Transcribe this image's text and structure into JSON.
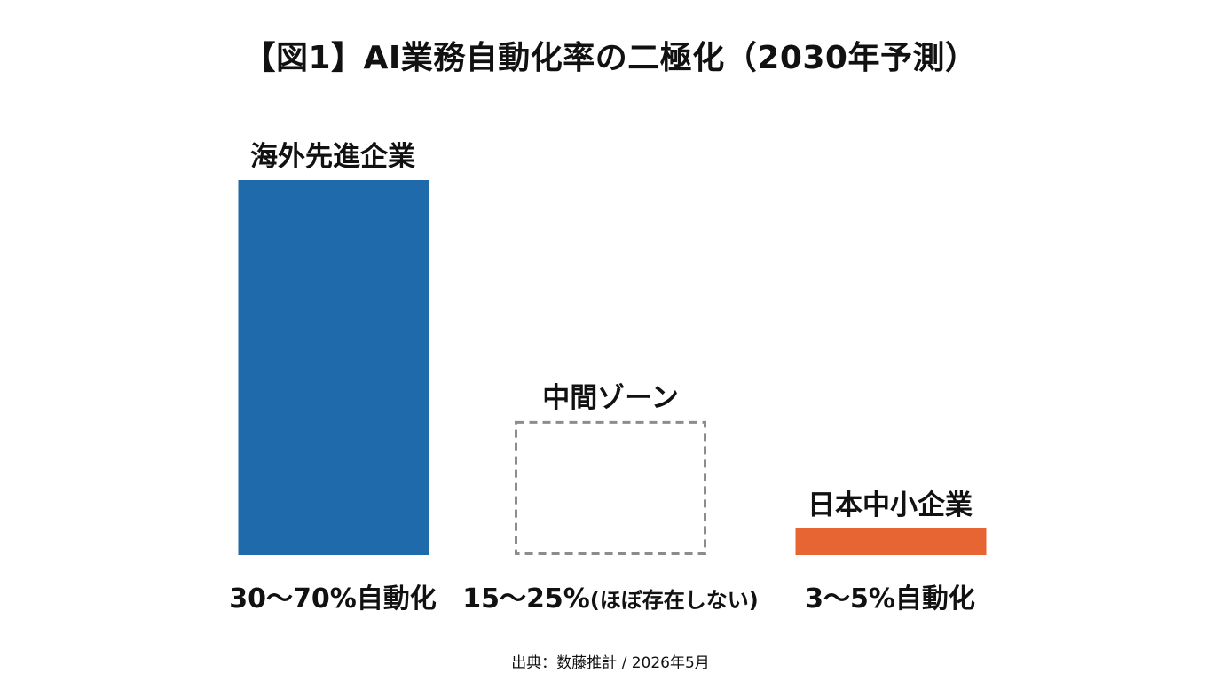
{
  "chart_data": {
    "type": "bar",
    "title": "【図1】AI業務自動化率の二極化（2030年予測）",
    "categories": [
      "海外先進企業",
      "中間ゾーン",
      "日本中小企業"
    ],
    "series": [
      {
        "values": [
          70,
          25,
          5
        ],
        "ranges": [
          [
            30,
            70
          ],
          [
            15,
            25
          ],
          [
            3,
            5
          ]
        ]
      }
    ],
    "value_labels": [
      "30〜70%自動化",
      "15〜25%(ほぼ存在しない)",
      "3〜5%自動化"
    ],
    "bar_styles": [
      "solid",
      "dashed",
      "solid"
    ],
    "colors": [
      "#1f6aab",
      "#8c8c8c",
      "#e66532"
    ],
    "ylim": [
      0,
      70
    ],
    "grid": false,
    "legend": "none",
    "xlabel": "",
    "ylabel": ""
  },
  "source": "出典：数藤推計 / 2026年5月"
}
